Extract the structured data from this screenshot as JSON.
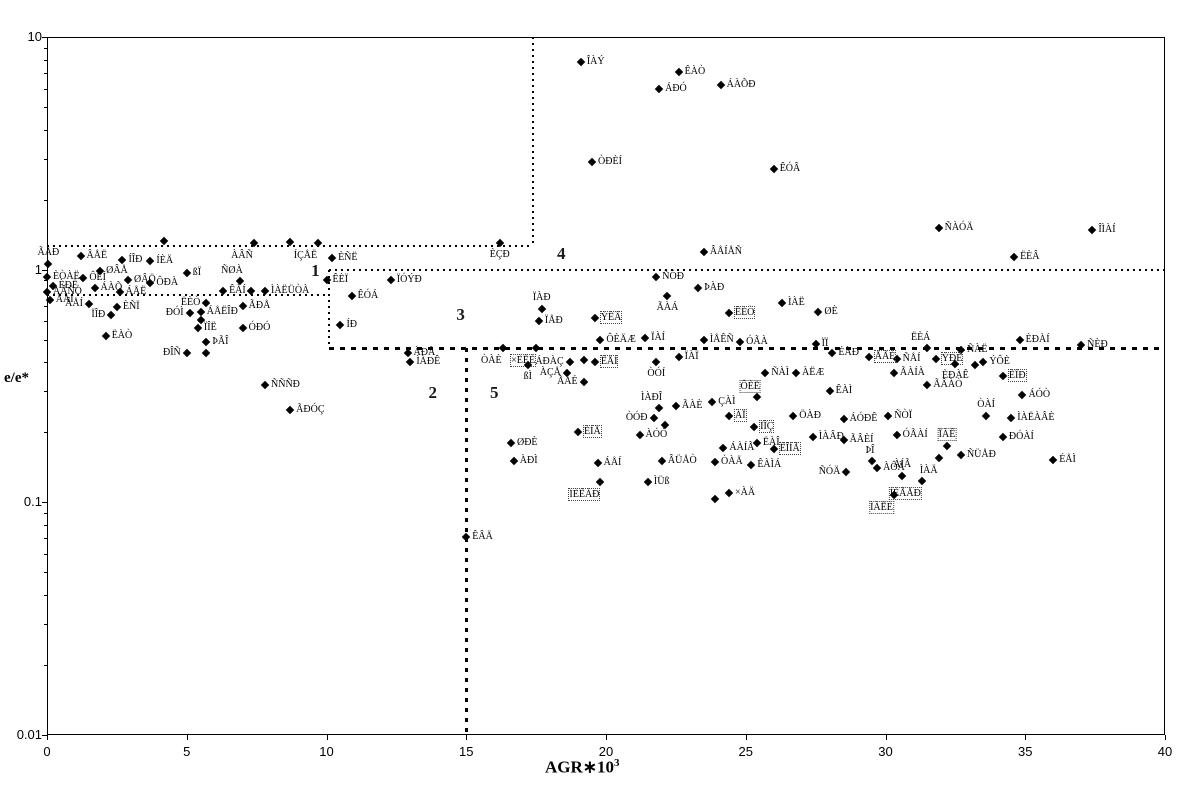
{
  "axes": {
    "xlabel_pre": "AGR∗10",
    "xlabel_sup": "3",
    "ylabel": "e/e*"
  },
  "chart_data": {
    "type": "scatter",
    "xlabel": "AGR*10^3",
    "ylabel": "e/e*",
    "xlim": [
      0,
      40
    ],
    "ylim": [
      0.01,
      10
    ],
    "y_scale": "log",
    "grid": false,
    "legend": "none",
    "x_ticks": [
      0,
      5,
      10,
      15,
      20,
      25,
      30,
      35,
      40
    ],
    "y_ticks": [
      {
        "v": 10,
        "t": "10"
      },
      {
        "v": 1,
        "t": "1"
      },
      {
        "v": 0.1,
        "t": "0.1"
      },
      {
        "v": 0.01,
        "t": "0.01"
      }
    ],
    "zone_labels": [
      {
        "t": "1",
        "x": 9.6,
        "y": 0.99
      },
      {
        "t": "2",
        "x": 13.8,
        "y": 0.295
      },
      {
        "t": "3",
        "x": 14.8,
        "y": 0.64
      },
      {
        "t": "4",
        "x": 18.4,
        "y": 1.17
      },
      {
        "t": "5",
        "x": 16.0,
        "y": 0.295
      }
    ],
    "boundary_lines": [
      {
        "x1": 0,
        "x2": 17.4,
        "y1": 1.26,
        "y2": 1.26,
        "style": "fine"
      },
      {
        "x1": 17.4,
        "x2": 17.4,
        "y1": 1.26,
        "y2": 10,
        "style": "fine"
      },
      {
        "x1": 10.1,
        "x2": 40,
        "y1": 1.0,
        "y2": 1.0,
        "style": "fine"
      },
      {
        "x1": 0,
        "x2": 10.1,
        "y1": 0.78,
        "y2": 0.78,
        "style": "fine"
      },
      {
        "x1": 10.1,
        "x2": 10.1,
        "y1": 0.46,
        "y2": 1.0,
        "style": "fine"
      },
      {
        "x1": 10.1,
        "x2": 40,
        "y1": 0.46,
        "y2": 0.46,
        "style": "bold"
      },
      {
        "x1": 15,
        "x2": 15,
        "y1": 0.01,
        "y2": 0.46,
        "style": "med"
      }
    ],
    "points": [
      [
        "ÃÅÐ",
        0.05,
        1.06,
        "a",
        0
      ],
      [
        "ÂÅË",
        1.2,
        1.14,
        "r",
        0
      ],
      [
        "ÍÎÐ",
        2.7,
        1.1,
        "r",
        0
      ],
      [
        "ÍÈÄ",
        3.7,
        1.09,
        "r",
        0
      ],
      [
        "",
        4.2,
        1.33,
        "r",
        0
      ],
      [
        "ÀÂÑ",
        7.4,
        1.3,
        "bl",
        0
      ],
      [
        "",
        8.7,
        1.31,
        "r",
        0
      ],
      [
        "ÍÇÅË",
        9.7,
        1.3,
        "bl",
        0
      ],
      [
        "ÈÑË",
        10.2,
        1.12,
        "r",
        0
      ],
      [
        "ÈÇÐ",
        16.2,
        1.3,
        "b",
        0
      ],
      [
        "ØÂÅ",
        1.9,
        0.99,
        "r",
        0
      ],
      [
        "ÈÒÀË",
        0.0,
        0.93,
        "r",
        0
      ],
      [
        "ÔÈÍ",
        1.3,
        0.92,
        "r",
        0
      ],
      [
        "ØÂÖ",
        2.9,
        0.9,
        "r",
        0
      ],
      [
        "ÔÐÀ",
        3.7,
        0.88,
        "r",
        0
      ],
      [
        "ÈÐË",
        0.2,
        0.85,
        "r",
        0
      ],
      [
        "ÁÀÕ",
        1.7,
        0.83,
        "r",
        0
      ],
      [
        "ÀÂÑÒ",
        0.0,
        0.8,
        "r",
        0
      ],
      [
        "ÁÅË",
        2.6,
        0.8,
        "r",
        0
      ],
      [
        "ÄÀÍ",
        0.1,
        0.74,
        "r",
        0
      ],
      [
        "ÊÀÍ",
        6.3,
        0.81,
        "r",
        0
      ],
      [
        "ßÏ",
        5.0,
        0.97,
        "r",
        0
      ],
      [
        "ÑØÀ",
        6.9,
        0.89,
        "al",
        0
      ],
      [
        "",
        7.3,
        0.81,
        "r",
        0
      ],
      [
        "ÌÀËÜÒÀ",
        7.8,
        0.81,
        "r",
        0
      ],
      [
        "ÂÅÍ",
        1.5,
        0.71,
        "l",
        0
      ],
      [
        "ÈÑÏ",
        2.5,
        0.69,
        "r",
        0
      ],
      [
        "ËÈÒ",
        5.7,
        0.72,
        "l",
        0
      ],
      [
        "ÁÅËÎÐ",
        5.5,
        0.66,
        "r",
        0
      ],
      [
        "ÃÐÅ",
        7.0,
        0.7,
        "r",
        0
      ],
      [
        "ÏÎÐ",
        2.3,
        0.64,
        "l",
        0
      ],
      [
        "ÐÓÌ",
        5.1,
        0.65,
        "l",
        0
      ],
      [
        "",
        5.5,
        0.61,
        "r",
        0
      ],
      [
        "ÏÎË",
        5.4,
        0.56,
        "r",
        0
      ],
      [
        "ÓÐÓ",
        7.0,
        0.56,
        "r",
        0
      ],
      [
        "ËÀÒ",
        2.1,
        0.52,
        "r",
        0
      ],
      [
        "ÞÃÎ",
        5.7,
        0.49,
        "r",
        0
      ],
      [
        "ÐÎÑ",
        5.0,
        0.44,
        "l",
        0
      ],
      [
        "",
        5.7,
        0.44,
        "r",
        0
      ],
      [
        "ÑÑÑÐ",
        7.8,
        0.32,
        "r",
        0
      ],
      [
        "ÃÐÓÇ",
        8.7,
        0.25,
        "r",
        0
      ],
      [
        "ÊÈÏ",
        10.0,
        0.9,
        "r",
        0
      ],
      [
        "ÏÓÝÐ",
        12.3,
        0.9,
        "r",
        0
      ],
      [
        "ÊÓÁ",
        10.9,
        0.77,
        "r",
        0
      ],
      [
        "ÍÐ",
        10.5,
        0.58,
        "r",
        0
      ],
      [
        "ÀÐÃ",
        12.9,
        0.44,
        "r",
        0
      ],
      [
        "ÌÀÐÊ",
        13.0,
        0.4,
        "r",
        0
      ],
      [
        "ÒÀÈ",
        16.3,
        0.46,
        "bl",
        0
      ],
      [
        "×ÈËÈ",
        17.5,
        0.46,
        "bl",
        1
      ],
      [
        "ÁÐÀÇ",
        18.7,
        0.4,
        "l",
        0
      ],
      [
        "",
        19.2,
        0.41,
        "r",
        0
      ],
      [
        "ÊÅÍ",
        19.6,
        0.4,
        "r",
        1
      ],
      [
        "ÀÇÅ",
        18.6,
        0.36,
        "l",
        0
      ],
      [
        "ÃÀÉ",
        19.2,
        0.33,
        "l",
        0
      ],
      [
        "ßÌ",
        17.2,
        0.39,
        "b",
        0
      ],
      [
        "ØÐÈ",
        16.6,
        0.18,
        "r",
        0
      ],
      [
        "ÀÐÌ",
        16.7,
        0.15,
        "r",
        0
      ],
      [
        "ÊÂÄ",
        15.0,
        0.071,
        "r",
        0
      ],
      [
        "ÈÍÄ",
        19.0,
        0.2,
        "r",
        1
      ],
      [
        "ÁÅÍ",
        19.7,
        0.147,
        "r",
        0
      ],
      [
        "ÍÈÊÀÐ",
        19.8,
        0.122,
        "bl",
        1
      ],
      [
        "ÂÜÅÒ",
        22.0,
        0.15,
        "r",
        0
      ],
      [
        "ÌÜß",
        21.5,
        0.122,
        "r",
        0
      ],
      [
        "ÒÀÄ",
        23.9,
        0.149,
        "r",
        0
      ],
      [
        "ÁÀÍÃ",
        24.2,
        0.172,
        "r",
        0
      ],
      [
        "×ÀÄ",
        24.4,
        0.11,
        "r",
        0
      ],
      [
        "",
        23.9,
        0.103,
        "r",
        0
      ],
      [
        "ÒÓÍ",
        21.8,
        0.4,
        "b",
        0
      ],
      [
        "ÏÀÏ",
        22.6,
        0.42,
        "r",
        0
      ],
      [
        "ÌÀÐÎ",
        21.9,
        0.255,
        "al",
        0
      ],
      [
        "ÒÓÐ",
        21.7,
        0.23,
        "l",
        0
      ],
      [
        "",
        22.1,
        0.215,
        "r",
        0
      ],
      [
        "ÀÓÒ",
        21.2,
        0.195,
        "r",
        0
      ],
      [
        "ÃÀÈ",
        22.5,
        0.26,
        "r",
        0
      ],
      [
        "ÔÈË",
        25.4,
        0.285,
        "al",
        1
      ],
      [
        "ÇÀÌ",
        23.8,
        0.27,
        "r",
        0
      ],
      [
        "ÀÏ",
        24.4,
        0.235,
        "r",
        1
      ],
      [
        "ÌÎÇ",
        25.3,
        0.21,
        "r",
        1
      ],
      [
        "ËÀÎ",
        25.4,
        0.18,
        "r",
        0
      ],
      [
        "ÊÎÍÃ",
        26.0,
        0.17,
        "r",
        1
      ],
      [
        "ÊÀÌÁ",
        25.2,
        0.145,
        "r",
        0
      ],
      [
        "ÑÓÐ",
        21.8,
        0.93,
        "r",
        0
      ],
      [
        "ÞÀÐ",
        23.3,
        0.83,
        "r",
        0
      ],
      [
        "ÃÀÁ",
        22.2,
        0.77,
        "b",
        0
      ],
      [
        "ÏÀÐ",
        17.7,
        0.68,
        "a",
        0
      ],
      [
        "ÏÅÐ",
        17.6,
        0.6,
        "r",
        0
      ],
      [
        "ÝÊÂ",
        19.6,
        0.62,
        "r",
        1
      ],
      [
        "ÊÈÒ",
        24.4,
        0.65,
        "r",
        1
      ],
      [
        "ÌÀË",
        26.3,
        0.72,
        "r",
        0
      ],
      [
        "ØÈ",
        27.6,
        0.66,
        "r",
        0
      ],
      [
        "ÂÅÍÅÑ",
        23.5,
        1.19,
        "r",
        0
      ],
      [
        "ÔÈÄÆ",
        19.8,
        0.5,
        "r",
        0
      ],
      [
        "ÏÀÍ",
        21.4,
        0.51,
        "r",
        0
      ],
      [
        "ÌÅÊÑ",
        23.5,
        0.5,
        "r",
        0
      ],
      [
        "ÓÃÀ",
        24.8,
        0.49,
        "r",
        0
      ],
      [
        "ÏÏ",
        27.5,
        0.48,
        "r",
        0
      ],
      [
        "ÎÀÝ",
        19.1,
        7.8,
        "r",
        0
      ],
      [
        "ÊÀÒ",
        22.6,
        7.1,
        "r",
        0
      ],
      [
        "ÁÐÓ",
        21.9,
        6.0,
        "r",
        0
      ],
      [
        "ÁÀÕÐ",
        24.1,
        6.2,
        "r",
        0
      ],
      [
        "ÒÐÈÍ",
        19.5,
        2.9,
        "r",
        0
      ],
      [
        "ÊÓÂ",
        26.0,
        2.7,
        "r",
        0
      ],
      [
        "ÑÀÓÄ",
        31.9,
        1.51,
        "r",
        0
      ],
      [
        "ÎÌÀÍ",
        37.4,
        1.48,
        "r",
        0
      ],
      [
        "ËÈÂ",
        34.6,
        1.13,
        "r",
        0
      ],
      [
        "ËÈÁ",
        31.5,
        0.46,
        "al",
        0
      ],
      [
        "ÑÈÐ",
        37.0,
        0.475,
        "r",
        0
      ],
      [
        "ÈÐÀÍ",
        34.8,
        0.5,
        "r",
        0
      ],
      [
        "ÑÀË",
        32.7,
        0.45,
        "r",
        0
      ],
      [
        "ÑÅÍ",
        30.4,
        0.415,
        "r",
        0
      ],
      [
        "ÝÐÈ",
        31.8,
        0.415,
        "r",
        1
      ],
      [
        "ÝÔÈ",
        33.5,
        0.4,
        "r",
        0
      ],
      [
        "ÈÐÀÊ",
        32.5,
        0.395,
        "b",
        0
      ],
      [
        "",
        33.2,
        0.39,
        "r",
        0
      ],
      [
        "ÈÎÐ",
        34.2,
        0.35,
        "r",
        1
      ],
      [
        "ÁÓÒ",
        34.9,
        0.29,
        "r",
        0
      ],
      [
        "ÉÀÐ",
        28.1,
        0.44,
        "r",
        0
      ],
      [
        "ÅÃÈ",
        29.4,
        0.42,
        "r",
        1
      ],
      [
        "ÊÀÌ",
        28.0,
        0.3,
        "r",
        0
      ],
      [
        "ÑÀÌ",
        25.7,
        0.36,
        "r",
        0
      ],
      [
        "ÀËÆ",
        26.8,
        0.36,
        "r",
        0
      ],
      [
        "ÃÀÍÀ",
        30.3,
        0.36,
        "r",
        0
      ],
      [
        "ÃÂÀÒ",
        31.5,
        0.32,
        "r",
        0
      ],
      [
        "ÖÀÐ",
        26.7,
        0.235,
        "r",
        0
      ],
      [
        "ÁÓÐÊ",
        28.5,
        0.228,
        "r",
        0
      ],
      [
        "ÑÒÏ",
        30.1,
        0.235,
        "r",
        0
      ],
      [
        "ÒÀÍ",
        33.6,
        0.235,
        "a",
        0
      ],
      [
        "ÌÀËÀÂÈ",
        34.5,
        0.23,
        "r",
        0
      ],
      [
        "ÐÓÀÍ",
        34.2,
        0.19,
        "r",
        0
      ],
      [
        "ÌÀÂÐ",
        27.4,
        0.19,
        "r",
        0
      ],
      [
        "ÓÃÀÍ",
        30.4,
        0.195,
        "r",
        0
      ],
      [
        "ÏÀÊ",
        32.2,
        0.175,
        "a",
        1
      ],
      [
        "ÞÎ",
        29.5,
        0.15,
        "al",
        0
      ],
      [
        "ÀÔÃ",
        29.7,
        0.14,
        "r",
        0
      ],
      [
        "ÌÀÄ",
        31.9,
        0.155,
        "bl",
        0
      ],
      [
        "ÑÜÅÐ",
        32.7,
        0.16,
        "r",
        0
      ],
      [
        "ÉÅÌ",
        36.0,
        0.152,
        "r",
        0
      ],
      [
        "ÃÂÈÍ",
        28.5,
        0.185,
        "r",
        0
      ],
      [
        "ÑÓÄ",
        28.6,
        0.135,
        "l",
        0
      ],
      [
        "ÀÍÃ",
        30.6,
        0.13,
        "a",
        0
      ],
      [
        "ÍÈÃÅÐ",
        31.3,
        0.123,
        "bl",
        1
      ],
      [
        "ÌÀËÈ",
        30.3,
        0.108,
        "bl",
        1
      ]
    ]
  }
}
